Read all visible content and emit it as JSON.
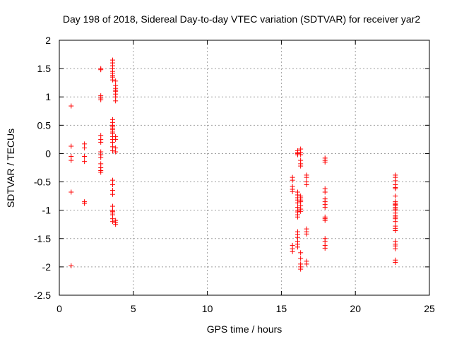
{
  "chart_data": {
    "type": "scatter",
    "title": "Day 198 of 2018, Sidereal Day-to-day VTEC variation (SDTVAR) for receiver yar2",
    "xlabel": "GPS time / hours",
    "ylabel": "SDTVAR / TECUs",
    "xlim": [
      0,
      25
    ],
    "ylim": [
      -2.5,
      2
    ],
    "xticks": [
      0,
      5,
      10,
      15,
      20,
      25
    ],
    "xtick_labels": [
      "0",
      "5",
      "10",
      "15",
      "20",
      "25"
    ],
    "yticks": [
      2,
      1.5,
      1,
      0.5,
      0,
      -0.5,
      -1,
      -1.5,
      -2,
      -2.5
    ],
    "ytick_labels": [
      "2",
      "1.5",
      "1",
      "0.5",
      "0",
      "-0.5",
      "-1",
      "-1.5",
      "-2",
      "-2.5"
    ],
    "grid": true,
    "marker": "+",
    "color": "#ff0000",
    "clusters": [
      {
        "x": 0.8,
        "y": [
          0.84,
          0.13,
          -0.05,
          -0.12,
          -0.68,
          -1.98
        ]
      },
      {
        "x": 1.7,
        "y": [
          0.17,
          0.1,
          -0.05,
          -0.14,
          -0.85,
          -0.88
        ]
      },
      {
        "x": 2.8,
        "y": [
          1.5,
          1.48,
          1.02,
          0.98,
          0.95,
          0.32,
          0.25,
          0.2,
          0.03,
          -0.02,
          -0.07,
          -0.18,
          -0.25,
          -0.3,
          -0.33
        ]
      },
      {
        "x": 3.6,
        "y": [
          1.65,
          1.6,
          1.55,
          1.5,
          1.45,
          1.42,
          1.38,
          1.35,
          1.3,
          0.6,
          0.55,
          0.5,
          0.48,
          0.45,
          0.42,
          0.38,
          0.35,
          0.3,
          0.25,
          0.2,
          0.12,
          0.05,
          -0.47,
          -0.55,
          -0.65,
          -0.72,
          -0.93,
          -1.0,
          -1.02,
          -1.05,
          -1.08,
          -1.15,
          -1.2
        ]
      },
      {
        "x": 3.8,
        "y": [
          1.28,
          1.2,
          1.15,
          1.12,
          1.1,
          1.05,
          1.0,
          0.93,
          0.3,
          0.25,
          0.1,
          0.03,
          -1.18,
          -1.22,
          -1.25
        ]
      },
      {
        "x": 15.75,
        "y": [
          -0.42,
          -0.47,
          -0.58,
          -0.63,
          -0.67,
          -1.62,
          -1.68,
          -1.73
        ]
      },
      {
        "x": 16.1,
        "y": [
          0.05,
          0.02,
          0.0,
          -0.02,
          -0.68,
          -0.73,
          -0.78,
          -0.82,
          -0.87,
          -0.95,
          -1.0,
          -1.03,
          -1.08,
          -1.12,
          -1.38,
          -1.43,
          -1.48,
          -1.55,
          -1.6,
          -1.65
        ]
      },
      {
        "x": 16.3,
        "y": [
          0.08,
          0.02,
          -0.02,
          -0.12,
          -0.18,
          -0.22,
          -0.75,
          -0.78,
          -0.82,
          -0.85,
          -0.92,
          -0.98,
          -1.02,
          -1.75,
          -1.85,
          -1.95,
          -2.0,
          -2.04
        ]
      },
      {
        "x": 16.7,
        "y": [
          -0.38,
          -0.42,
          -0.5,
          -0.55,
          -1.33,
          -1.38,
          -1.42,
          -1.9,
          -1.95
        ]
      },
      {
        "x": 17.95,
        "y": [
          -0.08,
          -0.12,
          -0.15,
          -0.62,
          -0.68,
          -0.8,
          -0.85,
          -0.9,
          -0.95,
          -1.12,
          -1.15,
          -1.18,
          -1.5,
          -1.55,
          -1.62,
          -1.67
        ]
      },
      {
        "x": 22.7,
        "y": [
          -0.38,
          -0.42,
          -0.48,
          -0.55,
          -0.6,
          -0.62,
          -0.75,
          -0.85,
          -0.88,
          -0.9,
          -0.92,
          -0.95,
          -0.98,
          -1.0,
          -1.05,
          -1.1,
          -1.12,
          -1.15,
          -1.2,
          -1.28,
          -1.32,
          -1.36,
          -1.55,
          -1.6,
          -1.63,
          -1.68,
          -1.88,
          -1.92
        ]
      }
    ]
  }
}
